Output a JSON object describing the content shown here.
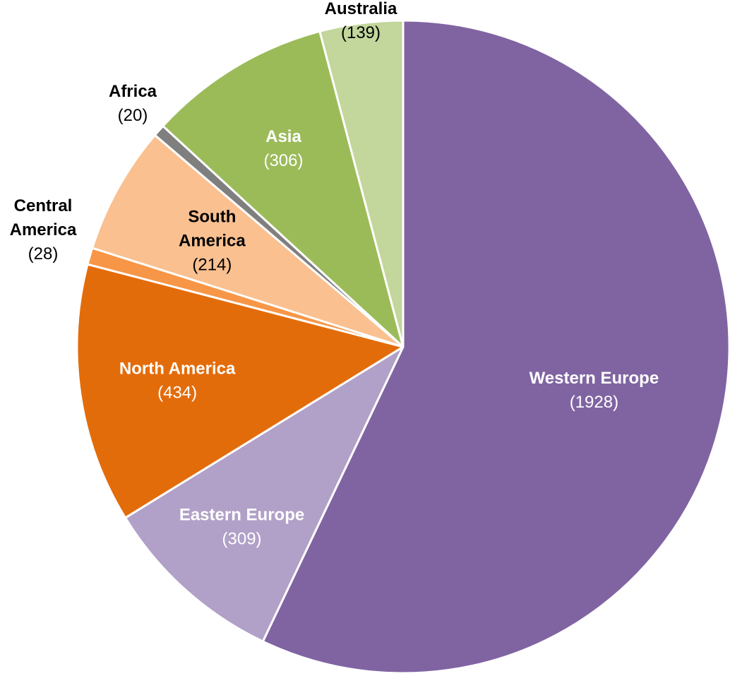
{
  "chart_data": {
    "type": "pie",
    "title": "",
    "start_angle_deg": 0,
    "direction": "clockwise",
    "slices": [
      {
        "name": "Western Europe",
        "value": 1928,
        "value_label": "(1928)",
        "color": "#8064a2",
        "label_color": "#ffffff",
        "label_placement": "inside"
      },
      {
        "name": "Eastern Europe",
        "value": 309,
        "value_label": "(309)",
        "color": "#b1a0c7",
        "label_color": "#ffffff",
        "label_placement": "inside"
      },
      {
        "name": "North America",
        "value": 434,
        "value_label": "(434)",
        "color": "#e36c0a",
        "label_color": "#ffffff",
        "label_placement": "inside"
      },
      {
        "name": "Central America",
        "name_lines": [
          "Central",
          "America"
        ],
        "value": 28,
        "value_label": "(28)",
        "color": "#f79646",
        "label_color": "#000000",
        "label_placement": "outside"
      },
      {
        "name": "South America",
        "name_lines": [
          "South",
          "America"
        ],
        "value": 214,
        "value_label": "(214)",
        "color": "#fac090",
        "label_color": "#000000",
        "label_placement": "inside"
      },
      {
        "name": "Africa",
        "value": 20,
        "value_label": "(20)",
        "color": "#7f7f7f",
        "label_color": "#000000",
        "label_placement": "outside"
      },
      {
        "name": "Asia",
        "value": 306,
        "value_label": "(306)",
        "color": "#9bbb59",
        "label_color": "#ffffff",
        "label_placement": "inside"
      },
      {
        "name": "Australia",
        "value": 139,
        "value_label": "(139)",
        "color": "#c3d69b",
        "label_color": "#000000",
        "label_placement": "outside"
      }
    ]
  }
}
